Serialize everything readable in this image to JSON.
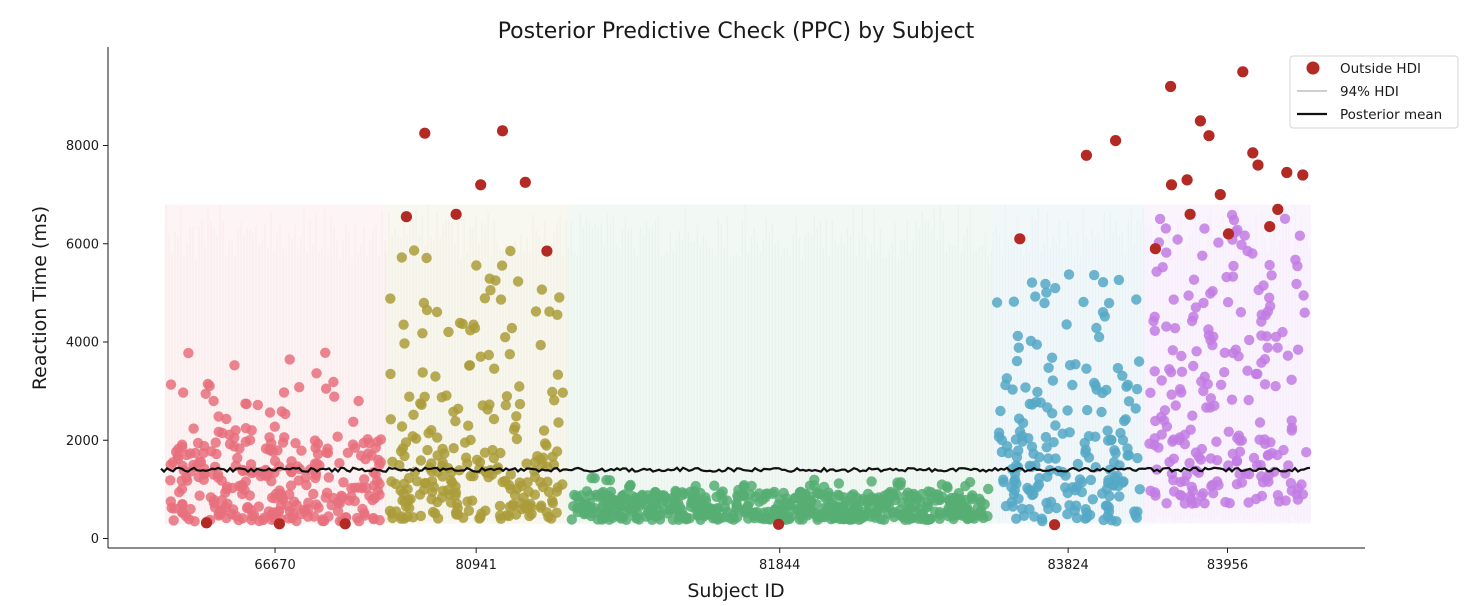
{
  "chart_data": {
    "type": "scatter",
    "title": "Posterior Predictive Check (PPC) by Subject",
    "xlabel": "Subject ID",
    "ylabel": "Reaction Time (ms)",
    "ylim": [
      -250,
      9900
    ],
    "yticks": [
      0,
      2000,
      4000,
      6000,
      8000
    ],
    "grid": false,
    "legend_position": "top-right",
    "legend": {
      "outside": "Outside HDI",
      "hdi": "94% HDI",
      "mean": "Posterior mean"
    },
    "posterior_mean": 1400,
    "hdi_range": [
      300,
      6800
    ],
    "outside_color": "#b22a23",
    "hdi_color": "#bdbdbd",
    "mean_color": "#111111",
    "subjects": [
      {
        "id": "66670",
        "color": "#e8707c",
        "n": 290,
        "typical_range": [
          350,
          2000
        ],
        "upper_tail": [
          2000,
          3800
        ],
        "upper_fraction": 0.15
      },
      {
        "id": "80941",
        "color": "#ac9c3a",
        "n": 240,
        "typical_range": [
          400,
          1800
        ],
        "upper_tail": [
          1800,
          6000
        ],
        "upper_fraction": 0.35
      },
      {
        "id": "81844",
        "color": "#56ae73",
        "n": 560,
        "typical_range": [
          380,
          950
        ],
        "upper_tail": [
          950,
          1250
        ],
        "upper_fraction": 0.05
      },
      {
        "id": "83824",
        "color": "#55a8c5",
        "n": 200,
        "typical_range": [
          350,
          2000
        ],
        "upper_tail": [
          2000,
          5400
        ],
        "upper_fraction": 0.4
      },
      {
        "id": "83956",
        "color": "#c27ce3",
        "n": 220,
        "typical_range": [
          700,
          2000
        ],
        "upper_tail": [
          2000,
          6600
        ],
        "upper_fraction": 0.55
      }
    ],
    "xticks_visible": [
      "66670",
      "80941",
      "81844",
      "83824",
      "83956"
    ],
    "outside_points": [
      {
        "subject": "66670",
        "y": 320
      },
      {
        "subject": "66670",
        "y": 300
      },
      {
        "subject": "66670",
        "y": 300
      },
      {
        "subject": "80941",
        "y": 6550
      },
      {
        "subject": "80941",
        "y": 8250
      },
      {
        "subject": "80941",
        "y": 6600
      },
      {
        "subject": "80941",
        "y": 7200
      },
      {
        "subject": "80941",
        "y": 8300
      },
      {
        "subject": "80941",
        "y": 7250
      },
      {
        "subject": "80941",
        "y": 5850
      },
      {
        "subject": "81844",
        "y": 290
      },
      {
        "subject": "83824",
        "y": 6100
      },
      {
        "subject": "83824",
        "y": 280
      },
      {
        "subject": "83824",
        "y": 7800
      },
      {
        "subject": "83824",
        "y": 8100
      },
      {
        "subject": "83956",
        "y": 5900
      },
      {
        "subject": "83956",
        "y": 9200
      },
      {
        "subject": "83956",
        "y": 7200
      },
      {
        "subject": "83956",
        "y": 7300
      },
      {
        "subject": "83956",
        "y": 6600
      },
      {
        "subject": "83956",
        "y": 8500
      },
      {
        "subject": "83956",
        "y": 8200
      },
      {
        "subject": "83956",
        "y": 7000
      },
      {
        "subject": "83956",
        "y": 6200
      },
      {
        "subject": "83956",
        "y": 9500
      },
      {
        "subject": "83956",
        "y": 7850
      },
      {
        "subject": "83956",
        "y": 7600
      },
      {
        "subject": "83956",
        "y": 6350
      },
      {
        "subject": "83956",
        "y": 6700
      },
      {
        "subject": "83956",
        "y": 7450
      },
      {
        "subject": "83956",
        "y": 7400
      }
    ]
  }
}
